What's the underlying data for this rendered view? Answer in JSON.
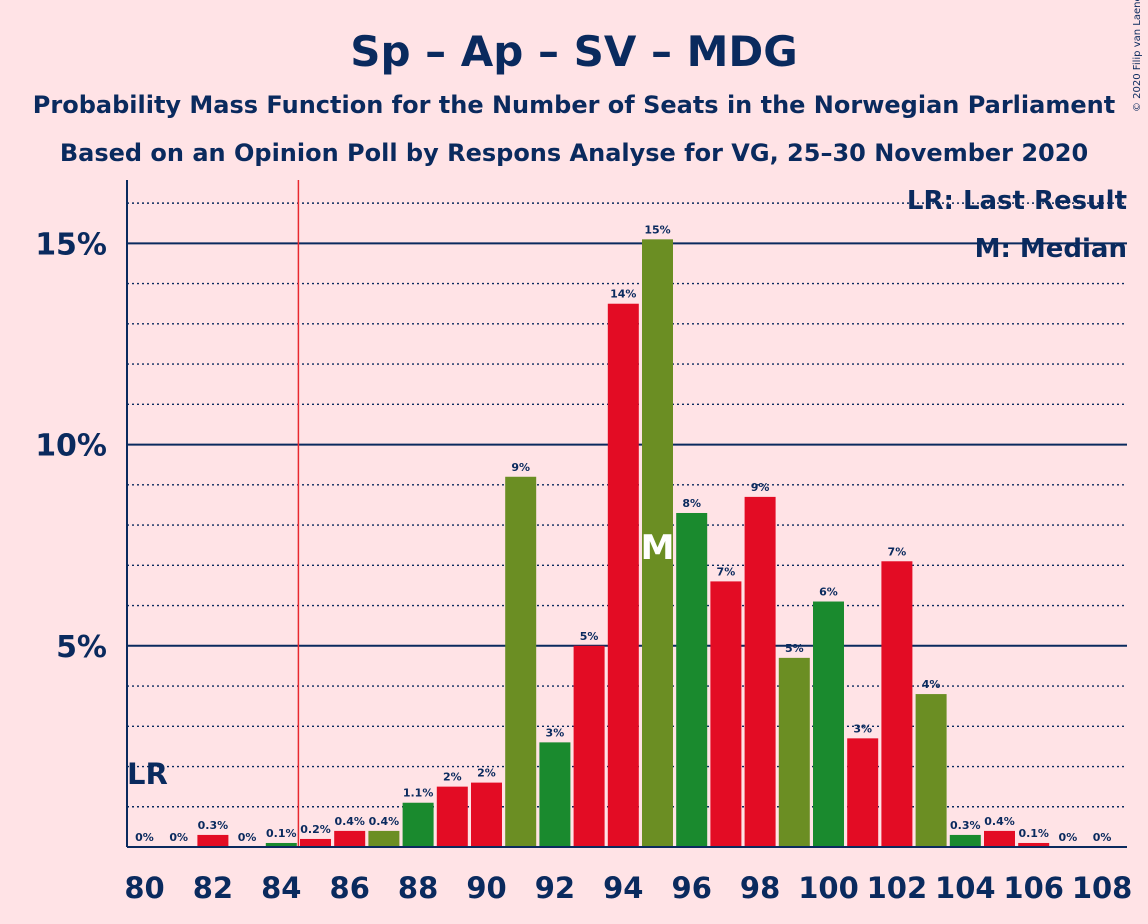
{
  "title": "Sp – Ap – SV – MDG",
  "subtitle1": "Probability Mass Function for the Number of Seats in the Norwegian Parliament",
  "subtitle2": "Based on an Opinion Poll by Respons Analyse for VG, 25–30 November 2020",
  "copyright": "© 2020 Filip van Laenen",
  "legend": {
    "lr": "LR: Last Result",
    "median": "M: Median"
  },
  "markers": {
    "lr_label": "LR",
    "median_label": "M"
  },
  "colors": {
    "background": "#ffe3e6",
    "text": "#0a2a5e",
    "red": "#e30c24",
    "olive": "#6b8e23",
    "green": "#1a8a2e",
    "lr_line": "#e8282f"
  },
  "chart_data": {
    "type": "bar",
    "x": [
      80,
      81,
      82,
      83,
      84,
      85,
      86,
      87,
      88,
      89,
      90,
      91,
      92,
      93,
      94,
      95,
      96,
      97,
      98,
      99,
      100,
      101,
      102,
      103,
      104,
      105,
      106,
      107,
      108
    ],
    "values": [
      0,
      0,
      0.3,
      0,
      0.1,
      0.2,
      0.4,
      0.4,
      1.1,
      1.5,
      1.6,
      9.2,
      2.6,
      5.0,
      13.5,
      15.1,
      8.3,
      6.6,
      8.7,
      4.7,
      6.1,
      2.7,
      7.1,
      3.8,
      0.3,
      0.4,
      0.1,
      0,
      0
    ],
    "labels": [
      "0%",
      "0%",
      "0.3%",
      "0%",
      "0.1%",
      "0.2%",
      "0.4%",
      "0.4%",
      "1.1%",
      "2%",
      "2%",
      "9%",
      "3%",
      "5%",
      "14%",
      "15%",
      "8%",
      "7%",
      "9%",
      "5%",
      "6%",
      "3%",
      "7%",
      "4%",
      "0.3%",
      "0.4%",
      "0.1%",
      "0%",
      "0%"
    ],
    "colors": [
      "red",
      "olive",
      "red",
      "olive",
      "green",
      "red",
      "red",
      "olive",
      "green",
      "red",
      "red",
      "olive",
      "green",
      "red",
      "red",
      "olive",
      "green",
      "red",
      "red",
      "olive",
      "green",
      "red",
      "red",
      "olive",
      "green",
      "red",
      "red",
      "olive",
      "green"
    ],
    "x_tick_labels": [
      "80",
      "82",
      "84",
      "86",
      "88",
      "90",
      "92",
      "94",
      "96",
      "98",
      "100",
      "102",
      "104",
      "106",
      "108"
    ],
    "y_tick_labels": [
      "5%",
      "10%",
      "15%"
    ],
    "y_ticks": [
      5,
      10,
      15
    ],
    "ylim": [
      0,
      16.5
    ],
    "last_result": 84.5,
    "median": 95,
    "grid": true
  }
}
